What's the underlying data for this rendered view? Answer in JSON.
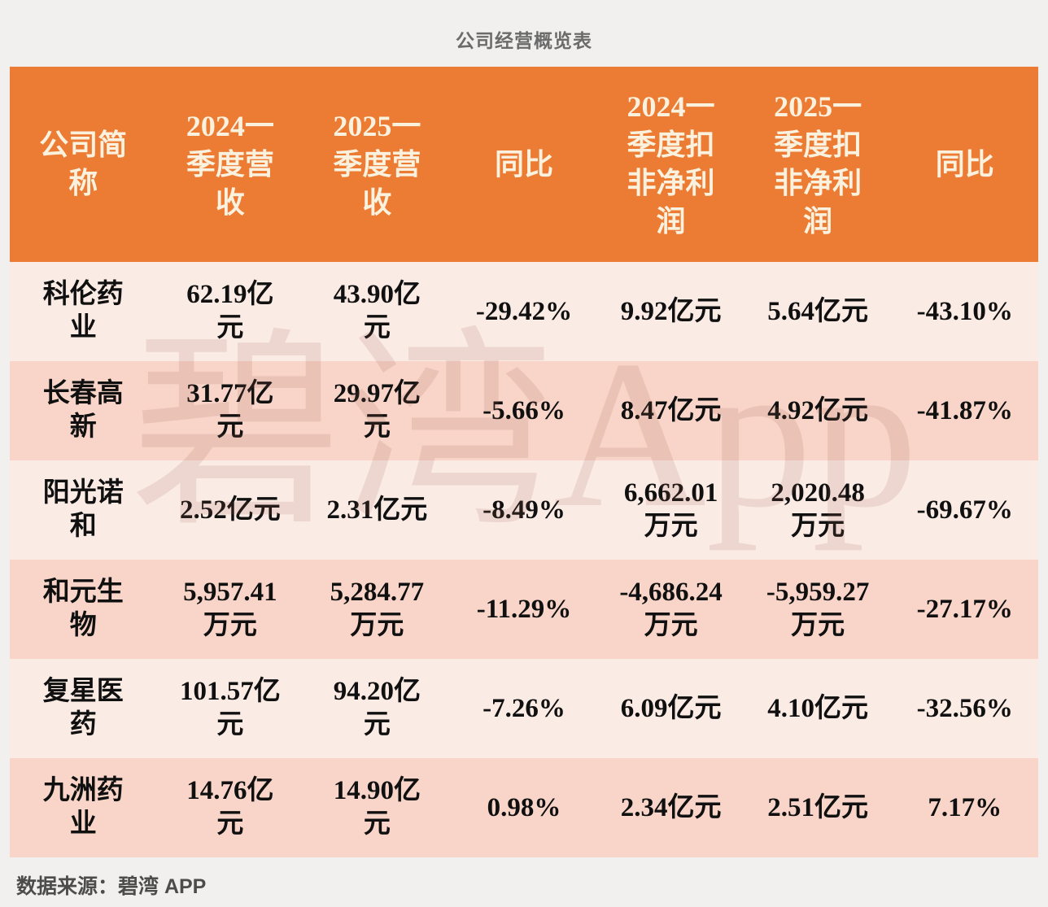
{
  "title": "公司经营概览表",
  "watermark": "碧湾App",
  "source": "数据来源：碧湾 APP",
  "colors": {
    "header_bg": "#ec7b33",
    "header_text": "#faf1de",
    "row_light": "#fbebe5",
    "row_dark": "#f8d5c8",
    "page_bg": "#f1f0ee",
    "cell_text": "#101010",
    "title_text": "#6b6b6b",
    "source_text": "#4c4c4c"
  },
  "chart_data": {
    "type": "table",
    "title": "公司经营概览表",
    "columns": [
      "公司简称",
      "2024一季度营收",
      "2025一季度营收",
      "同比",
      "2024一季度扣非净利润",
      "2025一季度扣非净利润",
      "同比"
    ],
    "rows": [
      [
        "科伦药业",
        "62.19亿元",
        "43.90亿元",
        "-29.42%",
        "9.92亿元",
        "5.64亿元",
        "-43.10%"
      ],
      [
        "长春高新",
        "31.77亿元",
        "29.97亿元",
        "-5.66%",
        "8.47亿元",
        "4.92亿元",
        "-41.87%"
      ],
      [
        "阳光诺和",
        "2.52亿元",
        "2.31亿元",
        "-8.49%",
        "6,662.01万元",
        "2,020.48万元",
        "-69.67%"
      ],
      [
        "和元生物",
        "5,957.41万元",
        "5,284.77万元",
        "-11.29%",
        "-4,686.24万元",
        "-5,959.27万元",
        "-27.17%"
      ],
      [
        "复星医药",
        "101.57亿元",
        "94.20亿元",
        "-7.26%",
        "6.09亿元",
        "4.10亿元",
        "-32.56%"
      ],
      [
        "九洲药业",
        "14.76亿元",
        "14.90亿元",
        "0.98%",
        "2.34亿元",
        "2.51亿元",
        "7.17%"
      ]
    ],
    "source": "数据来源：碧湾 APP",
    "layout": {
      "header_position": "top",
      "alternating_rows": true,
      "watermark": "碧湾App"
    }
  },
  "display": {
    "headers": [
      "公司简\n称",
      "2024一\n季度营\n收",
      "2025一\n季度营\n收",
      "同比",
      "2024一\n季度扣\n非净利\n润",
      "2025一\n季度扣\n非净利\n润",
      "同比"
    ],
    "rows": [
      [
        "科伦药\n业",
        "62.19亿\n元",
        "43.90亿\n元",
        "-29.42%",
        "9.92亿元",
        "5.64亿元",
        "-43.10%"
      ],
      [
        "长春高\n新",
        "31.77亿\n元",
        "29.97亿\n元",
        "-5.66%",
        "8.47亿元",
        "4.92亿元",
        "-41.87%"
      ],
      [
        "阳光诺\n和",
        "2.52亿元",
        "2.31亿元",
        "-8.49%",
        "6,662.01\n万元",
        "2,020.48\n万元",
        "-69.67%"
      ],
      [
        "和元生\n物",
        "5,957.41\n万元",
        "5,284.77\n万元",
        "-11.29%",
        "-4,686.24\n万元",
        "-5,959.27\n万元",
        "-27.17%"
      ],
      [
        "复星医\n药",
        "101.57亿\n元",
        "94.20亿\n元",
        "-7.26%",
        "6.09亿元",
        "4.10亿元",
        "-32.56%"
      ],
      [
        "九洲药\n业",
        "14.76亿\n元",
        "14.90亿\n元",
        "0.98%",
        "2.34亿元",
        "2.51亿元",
        "7.17%"
      ]
    ]
  }
}
